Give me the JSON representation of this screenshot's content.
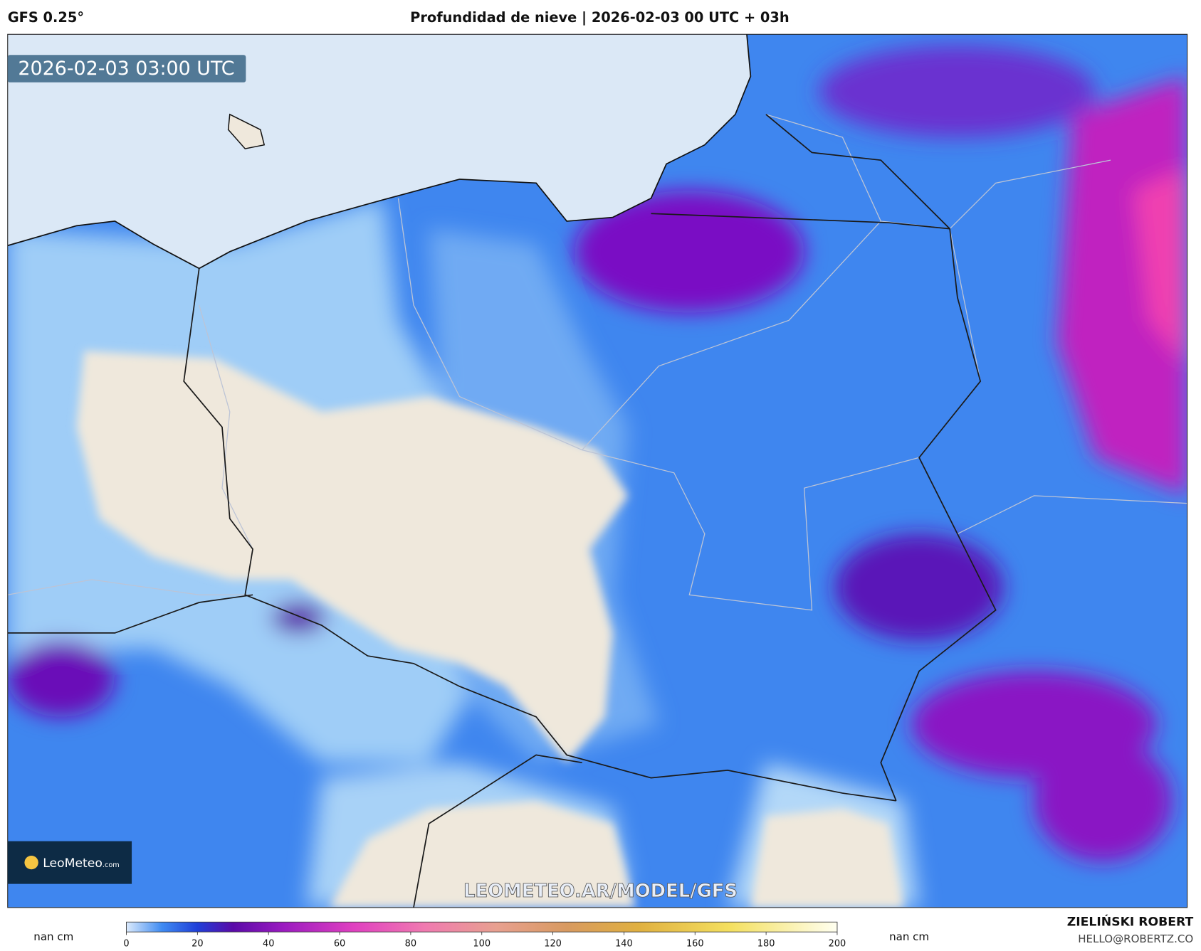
{
  "header": {
    "model": "GFS 0.25°",
    "title": "Profundidad de nieve | 2026-02-03 00 UTC + 03h"
  },
  "map": {
    "timestamp": "2026-02-03 03:00 UTC",
    "watermark": "LEOMETEO.AR/MODEL/GFS",
    "logo": {
      "brand": "LeoMeteo",
      "suffix": ".com"
    }
  },
  "colorbar": {
    "unit_left": "nan cm",
    "unit_right": "nan cm",
    "ticks": [
      0,
      20,
      40,
      60,
      80,
      100,
      120,
      140,
      160,
      180,
      200
    ]
  },
  "credits": {
    "author": "ZIELIŃSKI ROBERT",
    "email": "HELLO@ROBERTZ.CO"
  }
}
